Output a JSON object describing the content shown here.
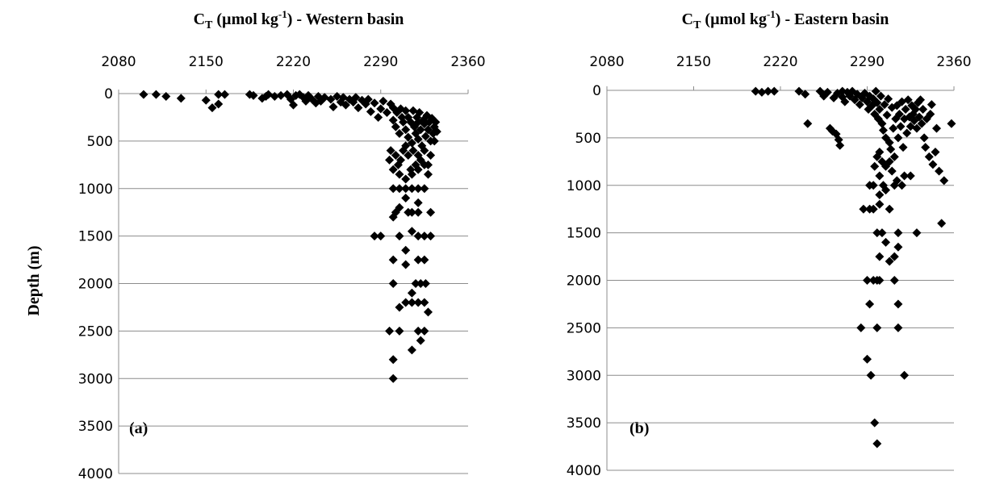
{
  "chart_data": [
    {
      "type": "scatter",
      "title_main": "C",
      "title_sub": "T",
      "title_units_pre": " (µmol kg",
      "title_units_sup": "-1",
      "title_rest": ") - Western basin",
      "panel_label": "(a)",
      "ylabel": "Depth (m)",
      "xlim": [
        2080,
        2360
      ],
      "ylim": [
        0,
        4000
      ],
      "y_inverted": true,
      "x_ticks": [
        "2080",
        "2150",
        "2220",
        "2290",
        "2360"
      ],
      "y_ticks": [
        "0",
        "500",
        "1000",
        "1500",
        "2000",
        "2500",
        "3000",
        "3500",
        "4000"
      ],
      "grid": "horizontal",
      "points": [
        [
          2100,
          10
        ],
        [
          2110,
          10
        ],
        [
          2118,
          30
        ],
        [
          2130,
          50
        ],
        [
          2150,
          70
        ],
        [
          2155,
          150
        ],
        [
          2160,
          110
        ],
        [
          2160,
          10
        ],
        [
          2165,
          10
        ],
        [
          2185,
          10
        ],
        [
          2188,
          20
        ],
        [
          2195,
          50
        ],
        [
          2198,
          30
        ],
        [
          2200,
          10
        ],
        [
          2205,
          30
        ],
        [
          2210,
          20
        ],
        [
          2215,
          10
        ],
        [
          2218,
          60
        ],
        [
          2220,
          120
        ],
        [
          2222,
          20
        ],
        [
          2225,
          10
        ],
        [
          2228,
          40
        ],
        [
          2230,
          80
        ],
        [
          2232,
          20
        ],
        [
          2235,
          60
        ],
        [
          2238,
          100
        ],
        [
          2240,
          30
        ],
        [
          2242,
          80
        ],
        [
          2245,
          40
        ],
        [
          2250,
          60
        ],
        [
          2252,
          140
        ],
        [
          2255,
          30
        ],
        [
          2258,
          90
        ],
        [
          2260,
          40
        ],
        [
          2262,
          120
        ],
        [
          2265,
          60
        ],
        [
          2268,
          90
        ],
        [
          2270,
          40
        ],
        [
          2272,
          150
        ],
        [
          2275,
          70
        ],
        [
          2278,
          110
        ],
        [
          2280,
          60
        ],
        [
          2282,
          190
        ],
        [
          2285,
          100
        ],
        [
          2288,
          250
        ],
        [
          2290,
          160
        ],
        [
          2292,
          80
        ],
        [
          2295,
          200
        ],
        [
          2298,
          110
        ],
        [
          2300,
          280
        ],
        [
          2300,
          150
        ],
        [
          2302,
          350
        ],
        [
          2303,
          200
        ],
        [
          2305,
          420
        ],
        [
          2306,
          160
        ],
        [
          2307,
          250
        ],
        [
          2308,
          300
        ],
        [
          2310,
          180
        ],
        [
          2310,
          380
        ],
        [
          2312,
          460
        ],
        [
          2312,
          250
        ],
        [
          2314,
          300
        ],
        [
          2315,
          520
        ],
        [
          2316,
          180
        ],
        [
          2317,
          350
        ],
        [
          2318,
          420
        ],
        [
          2319,
          250
        ],
        [
          2320,
          480
        ],
        [
          2320,
          300
        ],
        [
          2321,
          200
        ],
        [
          2322,
          380
        ],
        [
          2323,
          550
        ],
        [
          2324,
          280
        ],
        [
          2325,
          320
        ],
        [
          2326,
          450
        ],
        [
          2327,
          230
        ],
        [
          2328,
          380
        ],
        [
          2329,
          300
        ],
        [
          2330,
          500
        ],
        [
          2331,
          260
        ],
        [
          2332,
          420
        ],
        [
          2333,
          350
        ],
        [
          2334,
          300
        ],
        [
          2335,
          400
        ],
        [
          2333,
          500
        ],
        [
          2330,
          650
        ],
        [
          2328,
          750
        ],
        [
          2325,
          600
        ],
        [
          2322,
          700
        ],
        [
          2320,
          650
        ],
        [
          2318,
          750
        ],
        [
          2316,
          600
        ],
        [
          2314,
          800
        ],
        [
          2312,
          650
        ],
        [
          2310,
          550
        ],
        [
          2308,
          600
        ],
        [
          2306,
          700
        ],
        [
          2304,
          750
        ],
        [
          2302,
          650
        ],
        [
          2300,
          800
        ],
        [
          2298,
          600
        ],
        [
          2297,
          700
        ],
        [
          2305,
          850
        ],
        [
          2310,
          900
        ],
        [
          2315,
          850
        ],
        [
          2320,
          800
        ],
        [
          2325,
          750
        ],
        [
          2328,
          850
        ],
        [
          2300,
          1000
        ],
        [
          2305,
          1000
        ],
        [
          2310,
          1000
        ],
        [
          2315,
          1000
        ],
        [
          2320,
          1000
        ],
        [
          2325,
          1000
        ],
        [
          2310,
          1100
        ],
        [
          2305,
          1200
        ],
        [
          2300,
          1300
        ],
        [
          2302,
          1250
        ],
        [
          2312,
          1250
        ],
        [
          2315,
          1250
        ],
        [
          2320,
          1250
        ],
        [
          2330,
          1250
        ],
        [
          2320,
          1150
        ],
        [
          2315,
          1450
        ],
        [
          2285,
          1500
        ],
        [
          2290,
          1500
        ],
        [
          2305,
          1500
        ],
        [
          2320,
          1500
        ],
        [
          2325,
          1500
        ],
        [
          2330,
          1500
        ],
        [
          2300,
          1750
        ],
        [
          2310,
          1800
        ],
        [
          2320,
          1750
        ],
        [
          2325,
          1750
        ],
        [
          2310,
          1650
        ],
        [
          2300,
          2000
        ],
        [
          2318,
          2000
        ],
        [
          2322,
          2000
        ],
        [
          2326,
          2000
        ],
        [
          2315,
          2100
        ],
        [
          2310,
          2200
        ],
        [
          2315,
          2200
        ],
        [
          2320,
          2200
        ],
        [
          2325,
          2200
        ],
        [
          2328,
          2300
        ],
        [
          2305,
          2250
        ],
        [
          2297,
          2500
        ],
        [
          2305,
          2500
        ],
        [
          2320,
          2500
        ],
        [
          2325,
          2500
        ],
        [
          2322,
          2600
        ],
        [
          2315,
          2700
        ],
        [
          2300,
          2800
        ],
        [
          2300,
          3000
        ]
      ]
    },
    {
      "type": "scatter",
      "title_main": "C",
      "title_sub": "T",
      "title_units_pre": " (µmol kg",
      "title_units_sup": "-1",
      "title_rest": ") - Eastern basin",
      "panel_label": "(b)",
      "ylabel": "",
      "xlim": [
        2080,
        2360
      ],
      "ylim": [
        0,
        4000
      ],
      "y_inverted": true,
      "x_ticks": [
        "2080",
        "2150",
        "2220",
        "2290",
        "2360"
      ],
      "y_ticks": [
        "0",
        "500",
        "1000",
        "1500",
        "2000",
        "2500",
        "3000",
        "3500",
        "4000"
      ],
      "grid": "horizontal",
      "points": [
        [
          2200,
          10
        ],
        [
          2205,
          20
        ],
        [
          2210,
          10
        ],
        [
          2215,
          10
        ],
        [
          2235,
          10
        ],
        [
          2240,
          40
        ],
        [
          2242,
          350
        ],
        [
          2252,
          10
        ],
        [
          2255,
          60
        ],
        [
          2258,
          20
        ],
        [
          2260,
          400
        ],
        [
          2262,
          430
        ],
        [
          2263,
          80
        ],
        [
          2265,
          460
        ],
        [
          2266,
          30
        ],
        [
          2267,
          520
        ],
        [
          2268,
          580
        ],
        [
          2270,
          10
        ],
        [
          2270,
          70
        ],
        [
          2272,
          120
        ],
        [
          2274,
          20
        ],
        [
          2276,
          60
        ],
        [
          2278,
          10
        ],
        [
          2280,
          100
        ],
        [
          2282,
          40
        ],
        [
          2284,
          150
        ],
        [
          2286,
          80
        ],
        [
          2288,
          30
        ],
        [
          2290,
          120
        ],
        [
          2291,
          200
        ],
        [
          2292,
          60
        ],
        [
          2294,
          160
        ],
        [
          2295,
          90
        ],
        [
          2296,
          250
        ],
        [
          2297,
          10
        ],
        [
          2298,
          130
        ],
        [
          2299,
          300
        ],
        [
          2300,
          200
        ],
        [
          2301,
          60
        ],
        [
          2302,
          350
        ],
        [
          2303,
          420
        ],
        [
          2304,
          150
        ],
        [
          2305,
          500
        ],
        [
          2306,
          260
        ],
        [
          2307,
          90
        ],
        [
          2308,
          550
        ],
        [
          2309,
          620
        ],
        [
          2310,
          180
        ],
        [
          2311,
          400
        ],
        [
          2312,
          700
        ],
        [
          2313,
          300
        ],
        [
          2314,
          160
        ],
        [
          2315,
          500
        ],
        [
          2316,
          250
        ],
        [
          2317,
          380
        ],
        [
          2318,
          120
        ],
        [
          2319,
          600
        ],
        [
          2320,
          300
        ],
        [
          2321,
          200
        ],
        [
          2322,
          450
        ],
        [
          2323,
          100
        ],
        [
          2324,
          280
        ],
        [
          2325,
          380
        ],
        [
          2326,
          160
        ],
        [
          2327,
          250
        ],
        [
          2328,
          320
        ],
        [
          2329,
          200
        ],
        [
          2330,
          400
        ],
        [
          2331,
          130
        ],
        [
          2332,
          280
        ],
        [
          2333,
          100
        ],
        [
          2334,
          350
        ],
        [
          2335,
          200
        ],
        [
          2336,
          500
        ],
        [
          2337,
          600
        ],
        [
          2338,
          300
        ],
        [
          2340,
          700
        ],
        [
          2341,
          250
        ],
        [
          2342,
          150
        ],
        [
          2343,
          780
        ],
        [
          2345,
          650
        ],
        [
          2346,
          400
        ],
        [
          2348,
          850
        ],
        [
          2352,
          950
        ],
        [
          2358,
          350
        ],
        [
          2300,
          650
        ],
        [
          2302,
          750
        ],
        [
          2298,
          700
        ],
        [
          2305,
          800
        ],
        [
          2308,
          750
        ],
        [
          2310,
          850
        ],
        [
          2296,
          800
        ],
        [
          2300,
          900
        ],
        [
          2303,
          1000
        ],
        [
          2300,
          1100
        ],
        [
          2305,
          1050
        ],
        [
          2312,
          1000
        ],
        [
          2314,
          950
        ],
        [
          2318,
          1000
        ],
        [
          2320,
          900
        ],
        [
          2325,
          900
        ],
        [
          2295,
          1000
        ],
        [
          2292,
          1000
        ],
        [
          2300,
          1200
        ],
        [
          2292,
          1250
        ],
        [
          2287,
          1250
        ],
        [
          2295,
          1250
        ],
        [
          2308,
          1250
        ],
        [
          2298,
          1500
        ],
        [
          2302,
          1500
        ],
        [
          2315,
          1500
        ],
        [
          2330,
          1500
        ],
        [
          2350,
          1400
        ],
        [
          2305,
          1600
        ],
        [
          2300,
          1750
        ],
        [
          2308,
          1800
        ],
        [
          2312,
          1750
        ],
        [
          2315,
          1650
        ],
        [
          2290,
          2000
        ],
        [
          2295,
          2000
        ],
        [
          2298,
          2000
        ],
        [
          2300,
          2000
        ],
        [
          2312,
          2000
        ],
        [
          2292,
          2250
        ],
        [
          2315,
          2250
        ],
        [
          2285,
          2500
        ],
        [
          2298,
          2500
        ],
        [
          2315,
          2500
        ],
        [
          2290,
          2830
        ],
        [
          2293,
          3000
        ],
        [
          2320,
          3000
        ],
        [
          2296,
          3500
        ],
        [
          2298,
          3720
        ]
      ]
    }
  ]
}
